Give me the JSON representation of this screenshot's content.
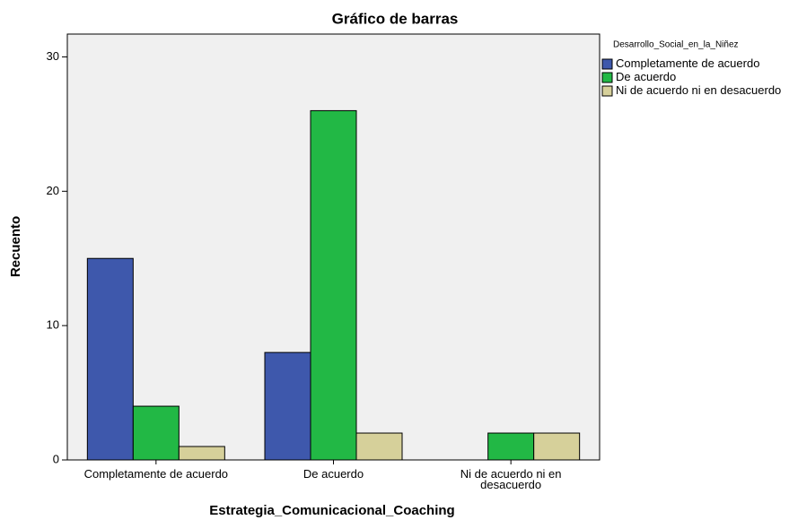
{
  "chart_data": {
    "type": "bar",
    "title": "Gráfico de barras",
    "x_label": "Estrategia_Comunicacional_Coaching",
    "y_label": "Recuento",
    "legend_title": "Desarrollo_Social_en_la_Niñez",
    "categories": [
      "Completamente de acuerdo",
      "De acuerdo",
      "Ni de acuerdo ni en desacuerdo"
    ],
    "series": [
      {
        "name": "Completamente de acuerdo",
        "color": "#3e58ac",
        "values": [
          15,
          8,
          0
        ]
      },
      {
        "name": "De acuerdo",
        "color": "#22b845",
        "values": [
          4,
          26,
          2
        ]
      },
      {
        "name": "Ni de acuerdo ni en desacuerdo",
        "color": "#d6d09a",
        "values": [
          1,
          2,
          2
        ]
      }
    ],
    "ylim": [
      0,
      31.7
    ],
    "yticks": [
      0,
      10,
      20,
      30
    ],
    "grid": false,
    "legend": "right"
  }
}
